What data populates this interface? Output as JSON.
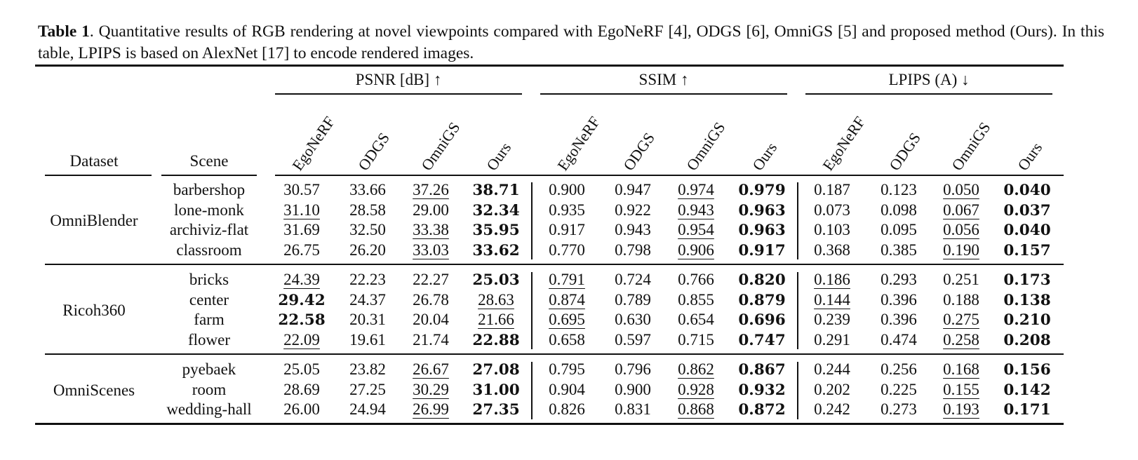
{
  "caption": {
    "label": "Table 1",
    "text": ". Quantitative results of RGB rendering at novel viewpoints compared with EgoNeRF [4], ODGS [6], OmniGS [5] and proposed method (Ours). In this table, LPIPS is based on AlexNet [17] to encode rendered images."
  },
  "table": {
    "dataset_header": "Dataset",
    "scene_header": "Scene",
    "metric_groups": [
      {
        "title": "PSNR [dB] ↑",
        "methods": [
          "EgoNeRF",
          "ODGS",
          "OmniGS",
          "Ours"
        ]
      },
      {
        "title": "SSIM ↑",
        "methods": [
          "EgoNeRF",
          "ODGS",
          "OmniGS",
          "Ours"
        ]
      },
      {
        "title": "LPIPS (A) ↓",
        "methods": [
          "EgoNeRF",
          "ODGS",
          "OmniGS",
          "Ours"
        ]
      }
    ],
    "datasets": [
      {
        "name": "OmniBlender",
        "rows": [
          {
            "scene": "barbershop",
            "values": [
              "30.57",
              "33.66",
              "37.26",
              "38.71",
              "0.900",
              "0.947",
              "0.974",
              "0.979",
              "0.187",
              "0.123",
              "0.050",
              "0.040"
            ],
            "bold": [
              3,
              7,
              11
            ],
            "underline": [
              2,
              6,
              10
            ]
          },
          {
            "scene": "lone-monk",
            "values": [
              "31.10",
              "28.58",
              "29.00",
              "32.34",
              "0.935",
              "0.922",
              "0.943",
              "0.963",
              "0.073",
              "0.098",
              "0.067",
              "0.037"
            ],
            "bold": [
              3,
              7,
              11
            ],
            "underline": [
              0,
              6,
              10
            ]
          },
          {
            "scene": "archiviz-flat",
            "values": [
              "31.69",
              "32.50",
              "33.38",
              "35.95",
              "0.917",
              "0.943",
              "0.954",
              "0.963",
              "0.103",
              "0.095",
              "0.056",
              "0.040"
            ],
            "bold": [
              3,
              7,
              11
            ],
            "underline": [
              2,
              6,
              10
            ]
          },
          {
            "scene": "classroom",
            "values": [
              "26.75",
              "26.20",
              "33.03",
              "33.62",
              "0.770",
              "0.798",
              "0.906",
              "0.917",
              "0.368",
              "0.385",
              "0.190",
              "0.157"
            ],
            "bold": [
              3,
              7,
              11
            ],
            "underline": [
              2,
              6,
              10
            ]
          }
        ]
      },
      {
        "name": "Ricoh360",
        "rows": [
          {
            "scene": "bricks",
            "values": [
              "24.39",
              "22.23",
              "22.27",
              "25.03",
              "0.791",
              "0.724",
              "0.766",
              "0.820",
              "0.186",
              "0.293",
              "0.251",
              "0.173"
            ],
            "bold": [
              3,
              7,
              11
            ],
            "underline": [
              0,
              4,
              8
            ]
          },
          {
            "scene": "center",
            "values": [
              "29.42",
              "24.37",
              "26.78",
              "28.63",
              "0.874",
              "0.789",
              "0.855",
              "0.879",
              "0.144",
              "0.396",
              "0.188",
              "0.138"
            ],
            "bold": [
              0,
              7,
              11
            ],
            "underline": [
              3,
              4,
              8
            ]
          },
          {
            "scene": "farm",
            "values": [
              "22.58",
              "20.31",
              "20.04",
              "21.66",
              "0.695",
              "0.630",
              "0.654",
              "0.696",
              "0.239",
              "0.396",
              "0.275",
              "0.210"
            ],
            "bold": [
              0,
              7,
              11
            ],
            "underline": [
              3,
              4,
              10
            ]
          },
          {
            "scene": "flower",
            "values": [
              "22.09",
              "19.61",
              "21.74",
              "22.88",
              "0.658",
              "0.597",
              "0.715",
              "0.747",
              "0.291",
              "0.474",
              "0.258",
              "0.208"
            ],
            "bold": [
              3,
              7,
              11
            ],
            "underline": [
              0,
              10
            ]
          }
        ]
      },
      {
        "name": "OmniScenes",
        "rows": [
          {
            "scene": "pyebaek",
            "values": [
              "25.05",
              "23.82",
              "26.67",
              "27.08",
              "0.795",
              "0.796",
              "0.862",
              "0.867",
              "0.244",
              "0.256",
              "0.168",
              "0.156"
            ],
            "bold": [
              3,
              7,
              11
            ],
            "underline": [
              2,
              6,
              10
            ]
          },
          {
            "scene": "room",
            "values": [
              "28.69",
              "27.25",
              "30.29",
              "31.00",
              "0.904",
              "0.900",
              "0.928",
              "0.932",
              "0.202",
              "0.225",
              "0.155",
              "0.142"
            ],
            "bold": [
              3,
              7,
              11
            ],
            "underline": [
              2,
              6,
              10
            ]
          },
          {
            "scene": "wedding-hall",
            "values": [
              "26.00",
              "24.94",
              "26.99",
              "27.35",
              "0.826",
              "0.831",
              "0.868",
              "0.872",
              "0.242",
              "0.273",
              "0.193",
              "0.171"
            ],
            "bold": [
              3,
              7,
              11
            ],
            "underline": [
              2,
              6,
              10
            ]
          }
        ]
      }
    ]
  }
}
